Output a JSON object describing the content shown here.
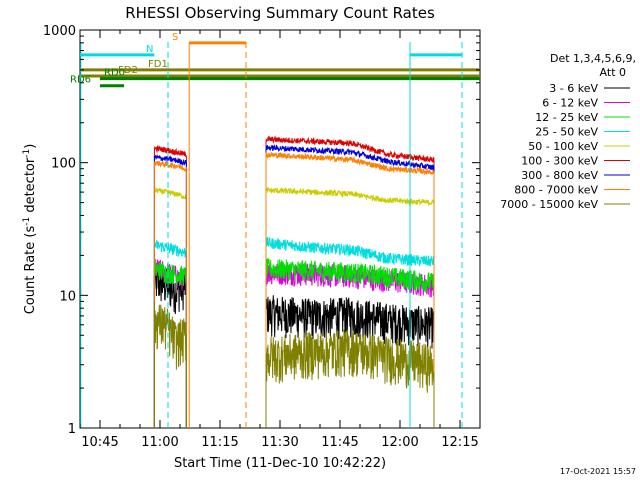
{
  "chart_data": {
    "type": "line",
    "title": "RHESSI Observing Summary Count Rates",
    "xlabel": "Start Time (11-Dec-10 10:42:22)",
    "ylabel_main": "Count Rate (s",
    "ylabel_sup1": "-1",
    "ylabel_mid": " detector",
    "ylabel_sup2": "-1",
    "ylabel_end": ")",
    "y_scale": "log",
    "ylim": [
      1,
      1000
    ],
    "xlim_minutes_of_day": [
      640,
      740
    ],
    "x_ticks": [
      {
        "label": "10:45",
        "t": 645
      },
      {
        "label": "11:00",
        "t": 660
      },
      {
        "label": "11:15",
        "t": 675
      },
      {
        "label": "11:30",
        "t": 690
      },
      {
        "label": "11:45",
        "t": 705
      },
      {
        "label": "12:00",
        "t": 720
      },
      {
        "label": "12:15",
        "t": 735
      }
    ],
    "y_ticks": [
      {
        "label": "1",
        "v": 1
      },
      {
        "label": "10",
        "v": 10
      },
      {
        "label": "100",
        "v": 100
      },
      {
        "label": "1000",
        "v": 1000
      }
    ],
    "legend_header": [
      "Det 1,3,4,5,6,9,",
      "Att 0"
    ],
    "legend_position": "right",
    "series": [
      {
        "name": "3 - 6 keV",
        "color": "#000000",
        "seg1": [
          13,
          12,
          11,
          12
        ],
        "seg2": [
          7.5,
          7.0,
          7.2,
          6.5,
          6.0
        ]
      },
      {
        "name": "6 - 12 keV",
        "color": "#dd00dd",
        "seg1": [
          16,
          15,
          14,
          13
        ],
        "seg2": [
          15,
          14.5,
          14.0,
          13.0,
          12.0
        ]
      },
      {
        "name": "12 - 25 keV",
        "color": "#00dd00",
        "seg1": [
          16,
          15,
          14.5,
          14
        ],
        "seg2": [
          16,
          15.5,
          15.0,
          14.0,
          12.5
        ]
      },
      {
        "name": "25 - 50 keV",
        "color": "#00dddd",
        "seg1": [
          24,
          23,
          22,
          21
        ],
        "seg2": [
          25,
          23,
          22,
          19,
          18
        ]
      },
      {
        "name": "50 - 100 keV",
        "color": "#cccc00",
        "seg1": [
          62,
          60,
          58,
          55
        ],
        "seg2": [
          62,
          60,
          58,
          52,
          50
        ]
      },
      {
        "name": "100 - 300 keV",
        "color": "#dd0000",
        "seg1": [
          128,
          125,
          120,
          115
        ],
        "seg2": [
          150,
          145,
          140,
          115,
          105
        ]
      },
      {
        "name": "300 - 800 keV",
        "color": "#0000dd",
        "seg1": [
          110,
          107,
          104,
          100
        ],
        "seg2": [
          130,
          125,
          120,
          102,
          92
        ]
      },
      {
        "name": "800 - 7000 keV",
        "color": "#ff8000",
        "seg1": [
          100,
          97,
          95,
          90
        ],
        "seg2": [
          115,
          110,
          105,
          90,
          85
        ]
      },
      {
        "name": "7000 - 15000 keV",
        "color": "#808000",
        "seg1": [
          6.5,
          6.0,
          4.5,
          5.0
        ],
        "seg2": [
          3.5,
          3.8,
          4.0,
          3.5,
          3.0
        ]
      }
    ],
    "segment_times": {
      "seg1": [
        658.6,
        661.5,
        664.0,
        666.6
      ],
      "seg2": [
        686.5,
        698,
        708,
        717,
        728.5
      ]
    },
    "flags": [
      {
        "label": "S",
        "color": "#ff8000",
        "t0": 667.3,
        "t1": 681.5,
        "level": 800
      },
      {
        "label": "N",
        "color": "#00dddd",
        "t0": 640,
        "t1": 658.6,
        "level": 650
      },
      {
        "label": "N",
        "color": "#00dddd",
        "t0": 722.5,
        "t1": 735.5,
        "level": 650
      },
      {
        "label": "FD1",
        "color": "#808000",
        "t0": 640,
        "t1": 740,
        "level": 500
      },
      {
        "label": "FD2",
        "color": "#808000",
        "t0": 640,
        "t1": 740,
        "level": 450
      },
      {
        "label": "RD0",
        "color": "#008000",
        "t0": 645,
        "t1": 740,
        "level": 430
      },
      {
        "label": "RD6",
        "color": "#008000",
        "t0": 645,
        "t1": 651,
        "level": 380
      }
    ],
    "vertical_markers": [
      {
        "t": 640.2,
        "color": "#00dddd",
        "style": "solid"
      },
      {
        "t": 662.0,
        "color": "#00dddd",
        "style": "dashed"
      },
      {
        "t": 667.3,
        "color": "#ff8000",
        "style": "solid"
      },
      {
        "t": 681.5,
        "color": "#ff8000",
        "style": "dashed"
      },
      {
        "t": 722.5,
        "color": "#00dddd",
        "style": "solid"
      },
      {
        "t": 735.5,
        "color": "#00dddd",
        "style": "dashed"
      }
    ],
    "footer_stamp": "17-Oct-2021 15:57"
  }
}
